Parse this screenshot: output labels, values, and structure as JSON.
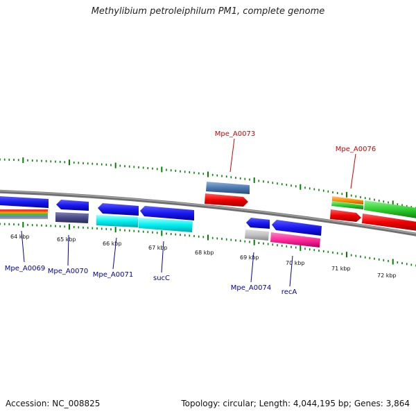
{
  "title": "Methylibium petroleiphilum PM1, complete genome",
  "footer": {
    "accession": "Accession: NC_008825",
    "summary": "Topology: circular; Length: 4,044,195 bp; Genes: 3,864"
  },
  "colors": {
    "backbone": "#808080",
    "tick": "#008000",
    "label_forward": "#cc0000",
    "label_reverse": "#000099"
  },
  "scale_labels": [
    "64 kbp",
    "65 kbp",
    "66 kbp",
    "67 kbp",
    "68 kbp",
    "69 kbp",
    "70 kbp",
    "71 kbp",
    "72 kbp"
  ],
  "gene_labels": [
    {
      "text": "Mpe_A0073",
      "strand": "forward"
    },
    {
      "text": "Mpe_A0076",
      "strand": "forward"
    },
    {
      "text": "Mpe_A0069",
      "strand": "reverse"
    },
    {
      "text": "Mpe_A0070",
      "strand": "reverse"
    },
    {
      "text": "Mpe_A0071",
      "strand": "reverse"
    },
    {
      "text": "sucC",
      "strand": "reverse"
    },
    {
      "text": "Mpe_A0074",
      "strand": "reverse"
    },
    {
      "text": "recA",
      "strand": "reverse"
    }
  ]
}
